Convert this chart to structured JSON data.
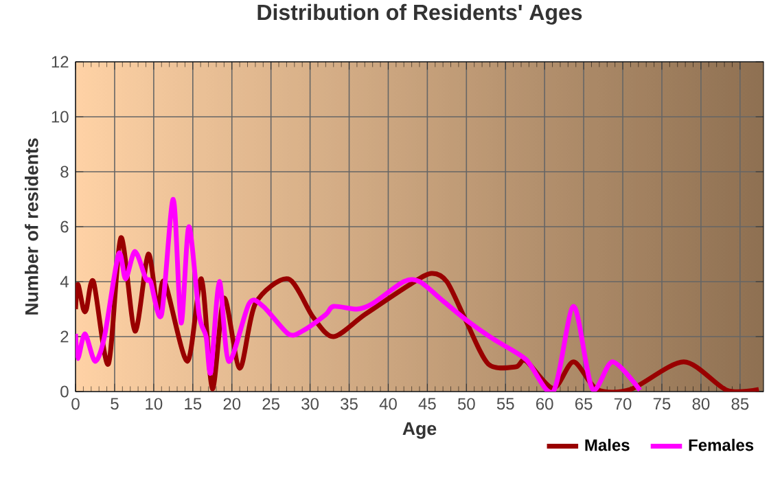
{
  "chart_data": {
    "type": "line",
    "title": "Distribution of Residents' Ages",
    "xlabel": "Age",
    "ylabel": "Number of residents",
    "xlim": [
      0,
      88
    ],
    "xticks": [
      0,
      5,
      10,
      15,
      20,
      25,
      30,
      35,
      40,
      45,
      50,
      55,
      60,
      65,
      70,
      75,
      80,
      85
    ],
    "ylim": [
      0,
      12
    ],
    "yticks": [
      0,
      2,
      4,
      6,
      8,
      10,
      12
    ],
    "grid": true,
    "legend": "bottom right",
    "marker": "none",
    "line_style": "solid",
    "series": [
      {
        "name": "Males",
        "color": "#990000",
        "x": [
          0,
          0.3,
          1,
          1.4,
          2.3,
          4.2,
          5.8,
          7.6,
          9.3,
          10.5,
          11.4,
          14.3,
          16.1,
          17.5,
          19,
          21,
          23,
          27.2,
          30.4,
          33,
          37,
          42.8,
          45.5,
          47.5,
          49.9,
          52.8,
          56.3,
          57.6,
          61.1,
          63.7,
          66.7,
          71,
          77.8,
          83.3,
          87.4
        ],
        "values": [
          3,
          3.9,
          3,
          3,
          4,
          1,
          5.6,
          2.2,
          5,
          3,
          4,
          1.1,
          4.1,
          0.1,
          3.4,
          0.85,
          3.2,
          4.1,
          2.7,
          2,
          2.8,
          3.9,
          4.3,
          4,
          2.6,
          1,
          0.9,
          1.12,
          0.12,
          1.08,
          0.08,
          0.08,
          1.08,
          0.05,
          0.08
        ]
      },
      {
        "name": "Females",
        "color": "#ff00ff",
        "x": [
          0,
          0.3,
          1.2,
          2.5,
          3.7,
          5.5,
          6.4,
          7.6,
          9,
          9.6,
          11,
          12.5,
          13.5,
          14.5,
          15.8,
          16.7,
          17.3,
          18.4,
          19.6,
          22.2,
          24,
          27.2,
          29,
          32,
          33,
          36,
          38,
          42,
          44,
          47,
          50,
          53.5,
          57.6,
          61.1,
          63.7,
          66.1,
          68.7,
          72.2
        ],
        "values": [
          2.1,
          1.2,
          2.1,
          1.1,
          2,
          5,
          4.1,
          5.1,
          4.1,
          4,
          2.8,
          7,
          2.5,
          6,
          2.8,
          2,
          0.7,
          4,
          1.1,
          3.2,
          3.1,
          2.1,
          2.2,
          2.8,
          3.1,
          3,
          3.2,
          4,
          4,
          3.3,
          2.6,
          1.9,
          1.17,
          0,
          3.1,
          0.1,
          1.08,
          0.05
        ]
      }
    ]
  }
}
